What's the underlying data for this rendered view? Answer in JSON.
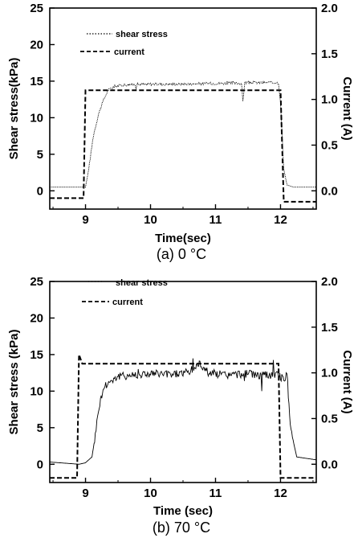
{
  "chart_data": [
    {
      "type": "line",
      "caption": "(a) 0 °C",
      "xlabel": "Time(sec)",
      "ylabel": "Shear stress(kPa)",
      "y2label": "Current (A)",
      "xlim": [
        8.45,
        12.55
      ],
      "ylim": [
        -2.5,
        25
      ],
      "y2lim": [
        -0.2,
        2.0
      ],
      "xticks": [
        "9",
        "10",
        "11",
        "12"
      ],
      "yticks": [
        "0",
        "5",
        "10",
        "15",
        "20",
        "25"
      ],
      "y2ticks": [
        "0.0",
        "0.5",
        "1.0",
        "1.5",
        "2.0"
      ],
      "legend_position": "top-center",
      "grid": false,
      "series": [
        {
          "name": "shear stress",
          "axis": "left",
          "style": "dotted",
          "x": [
            8.45,
            9.0,
            9.05,
            9.12,
            9.2,
            9.28,
            9.35,
            9.45,
            9.6,
            10.0,
            10.5,
            11.0,
            11.4,
            11.42,
            11.45,
            11.8,
            11.97,
            12.0,
            12.05,
            12.1,
            12.2,
            12.55
          ],
          "y": [
            0.5,
            0.5,
            3.0,
            7.5,
            10.5,
            12.5,
            13.8,
            14.3,
            14.5,
            14.6,
            14.6,
            14.7,
            14.7,
            12.2,
            14.8,
            14.8,
            14.8,
            12.0,
            3.0,
            0.8,
            0.5,
            0.5
          ]
        },
        {
          "name": "current",
          "axis": "right",
          "style": "dashed",
          "x": [
            8.45,
            8.97,
            9.0,
            9.05,
            11.95,
            12.0,
            12.05,
            12.55
          ],
          "y": [
            -0.08,
            -0.08,
            1.1,
            1.1,
            1.1,
            1.1,
            -0.12,
            -0.12
          ]
        }
      ]
    },
    {
      "type": "line",
      "caption": "(b) 70 °C",
      "xlabel": "Time (sec)",
      "ylabel": "Shear stress (kPa)",
      "y2label": "Current (A)",
      "xlim": [
        8.45,
        12.55
      ],
      "ylim": [
        -2.5,
        25
      ],
      "y2lim": [
        -0.2,
        2.0
      ],
      "xticks": [
        "9",
        "10",
        "11",
        "12"
      ],
      "yticks": [
        "0",
        "5",
        "10",
        "15",
        "20",
        "25"
      ],
      "y2ticks": [
        "0.0",
        "0.5",
        "1.0",
        "1.5",
        "2.0"
      ],
      "legend_position": "top-center",
      "grid": false,
      "series": [
        {
          "name": "shear stress",
          "axis": "left",
          "style": "solid-noisy",
          "x": [
            8.45,
            8.9,
            9.0,
            9.1,
            9.15,
            9.2,
            9.25,
            9.3,
            9.4,
            9.5,
            9.7,
            10.0,
            10.3,
            10.6,
            10.75,
            10.9,
            11.2,
            11.5,
            11.7,
            11.9,
            12.0,
            12.05,
            12.1,
            12.15,
            12.25,
            12.55
          ],
          "y": [
            0.3,
            0.0,
            0.2,
            1.0,
            4.0,
            7.5,
            9.5,
            10.8,
            11.5,
            12.0,
            12.2,
            12.4,
            12.3,
            12.6,
            13.8,
            12.5,
            12.2,
            12.4,
            12.1,
            12.3,
            12.0,
            11.5,
            12.5,
            5.0,
            1.0,
            0.6
          ]
        },
        {
          "name": "current",
          "axis": "right",
          "style": "dashed",
          "x": [
            8.45,
            8.87,
            8.9,
            8.95,
            9.1,
            11.97,
            12.0,
            12.55
          ],
          "y": [
            -0.15,
            -0.15,
            1.2,
            1.1,
            1.1,
            1.1,
            -0.15,
            -0.15
          ]
        }
      ]
    }
  ]
}
